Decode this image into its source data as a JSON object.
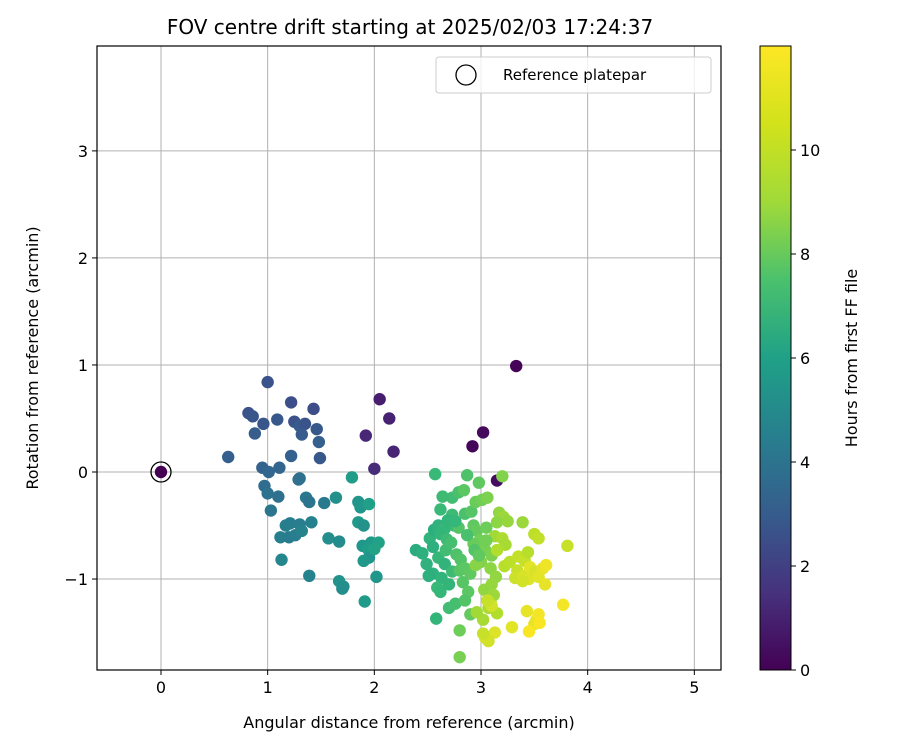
{
  "chart_data": {
    "type": "scatter",
    "title": "FOV centre drift starting at 2025/02/03 17:24:37",
    "xlabel": "Angular distance from reference (arcmin)",
    "ylabel": "Rotation from reference (arcmin)",
    "xlim": [
      -0.6,
      5.25
    ],
    "ylim": [
      -1.85,
      3.98
    ],
    "xticks": [
      0,
      1,
      2,
      3,
      4,
      5
    ],
    "yticks": [
      -1,
      0,
      1,
      2,
      3
    ],
    "ytick_labels": [
      "−1",
      "0",
      "1",
      "2",
      "3"
    ],
    "grid": true,
    "legend": {
      "location": "top-right",
      "entries": [
        "Reference platepar"
      ]
    },
    "reference_point": {
      "x": 0,
      "y": 0,
      "label": "Reference platepar"
    },
    "colorbar": {
      "label": "Hours from first FF file",
      "range": [
        0,
        12
      ],
      "ticks": [
        0,
        2,
        4,
        6,
        8,
        10
      ],
      "colormap": "viridis"
    },
    "series": [
      {
        "points": [
          [
            0,
            0,
            0.0
          ],
          [
            3.33,
            0.99,
            0.1
          ],
          [
            3.02,
            0.37,
            0.3
          ],
          [
            2.92,
            0.24,
            0.2
          ],
          [
            3.15,
            -0.08,
            0.4
          ],
          [
            2.05,
            0.68,
            1.0
          ],
          [
            2.14,
            0.5,
            1.1
          ],
          [
            1.92,
            0.34,
            1.3
          ],
          [
            2.18,
            0.19,
            1.2
          ],
          [
            2.0,
            0.03,
            1.5
          ],
          [
            1.0,
            0.84,
            3.1
          ],
          [
            1.43,
            0.59,
            2.8
          ],
          [
            1.22,
            0.65,
            2.9
          ],
          [
            0.82,
            0.55,
            3.0
          ],
          [
            0.86,
            0.52,
            3.2
          ],
          [
            1.09,
            0.49,
            3.3
          ],
          [
            1.25,
            0.47,
            3.0
          ],
          [
            1.3,
            0.43,
            3.4
          ],
          [
            1.35,
            0.45,
            3.1
          ],
          [
            0.96,
            0.45,
            3.2
          ],
          [
            1.46,
            0.4,
            3.3
          ],
          [
            0.88,
            0.36,
            3.5
          ],
          [
            1.32,
            0.35,
            3.4
          ],
          [
            1.48,
            0.28,
            3.6
          ],
          [
            1.49,
            0.13,
            3.3
          ],
          [
            1.22,
            0.15,
            3.7
          ],
          [
            0.63,
            0.14,
            3.6
          ],
          [
            0.95,
            0.04,
            3.8
          ],
          [
            1.11,
            0.04,
            3.9
          ],
          [
            1.01,
            0.0,
            3.9
          ],
          [
            1.29,
            -0.07,
            4.3
          ],
          [
            0.97,
            -0.13,
            4.2
          ],
          [
            1.3,
            -0.06,
            4.4
          ],
          [
            1.0,
            -0.2,
            4.5
          ],
          [
            1.1,
            -0.23,
            4.4
          ],
          [
            1.36,
            -0.24,
            4.8
          ],
          [
            1.39,
            -0.28,
            4.6
          ],
          [
            1.53,
            -0.29,
            4.9
          ],
          [
            1.03,
            -0.36,
            4.7
          ],
          [
            1.21,
            -0.48,
            5.0
          ],
          [
            1.3,
            -0.49,
            5.1
          ],
          [
            1.17,
            -0.5,
            5.2
          ],
          [
            1.41,
            -0.47,
            5.3
          ],
          [
            1.12,
            -0.61,
            5.2
          ],
          [
            1.2,
            -0.61,
            5.0
          ],
          [
            1.26,
            -0.59,
            5.1
          ],
          [
            1.32,
            -0.55,
            5.4
          ],
          [
            1.13,
            -0.82,
            5.5
          ],
          [
            1.39,
            -0.97,
            5.4
          ],
          [
            1.57,
            -0.62,
            5.9
          ],
          [
            1.67,
            -0.65,
            5.8
          ],
          [
            1.64,
            -0.24,
            6.0
          ],
          [
            1.67,
            -1.02,
            6.1
          ],
          [
            1.71,
            -1.07,
            6.0
          ],
          [
            1.7,
            -1.09,
            5.9
          ],
          [
            1.79,
            -0.05,
            6.6
          ],
          [
            1.85,
            -0.28,
            6.2
          ],
          [
            1.87,
            -0.33,
            6.3
          ],
          [
            1.85,
            -0.47,
            6.4
          ],
          [
            1.9,
            -0.5,
            6.1
          ],
          [
            1.95,
            -0.3,
            6.7
          ],
          [
            1.97,
            -0.66,
            6.5
          ],
          [
            1.89,
            -0.69,
            6.3
          ],
          [
            1.94,
            -0.72,
            6.6
          ],
          [
            1.95,
            -0.8,
            6.2
          ],
          [
            1.9,
            -0.83,
            6.4
          ],
          [
            2.02,
            -0.98,
            6.3
          ],
          [
            1.91,
            -1.21,
            6.5
          ],
          [
            2.04,
            -0.66,
            6.8
          ],
          [
            2.0,
            -0.72,
            6.9
          ],
          [
            2.39,
            -0.73,
            7.4
          ],
          [
            2.45,
            -0.76,
            7.6
          ],
          [
            2.52,
            -0.62,
            7.8
          ],
          [
            2.56,
            -0.54,
            7.5
          ],
          [
            2.6,
            -0.5,
            7.7
          ],
          [
            2.66,
            -0.53,
            8.0
          ],
          [
            2.7,
            -0.48,
            7.9
          ],
          [
            2.75,
            -0.5,
            8.1
          ],
          [
            2.62,
            -0.58,
            7.9
          ],
          [
            2.68,
            -0.63,
            8.2
          ],
          [
            2.55,
            -0.7,
            7.6
          ],
          [
            2.6,
            -0.8,
            8.0
          ],
          [
            2.66,
            -0.86,
            7.8
          ],
          [
            2.55,
            -0.95,
            7.7
          ],
          [
            2.63,
            -0.99,
            7.8
          ],
          [
            2.7,
            -1.05,
            7.9
          ],
          [
            2.59,
            -1.08,
            8.1
          ],
          [
            2.62,
            -1.12,
            8.0
          ],
          [
            2.7,
            -1.27,
            8.3
          ],
          [
            2.76,
            -1.23,
            8.4
          ],
          [
            2.58,
            -1.37,
            7.9
          ],
          [
            2.73,
            -0.93,
            8.2
          ],
          [
            2.67,
            -0.73,
            8.3
          ],
          [
            2.72,
            -0.66,
            8.4
          ],
          [
            2.77,
            -0.77,
            8.6
          ],
          [
            2.81,
            -0.82,
            8.7
          ],
          [
            2.8,
            -0.92,
            8.8
          ],
          [
            2.85,
            -0.9,
            8.9
          ],
          [
            2.9,
            -0.95,
            9.0
          ],
          [
            2.83,
            -1.03,
            8.8
          ],
          [
            2.88,
            -1.12,
            8.9
          ],
          [
            2.85,
            -1.2,
            8.7
          ],
          [
            2.9,
            -1.33,
            9.1
          ],
          [
            2.8,
            -1.48,
            9.3
          ],
          [
            2.8,
            -1.73,
            9.5
          ],
          [
            2.57,
            -0.02,
            8.1
          ],
          [
            2.73,
            -0.24,
            8.3
          ],
          [
            2.79,
            -0.19,
            8.5
          ],
          [
            2.84,
            -0.17,
            8.9
          ],
          [
            2.73,
            -0.4,
            8.2
          ],
          [
            2.85,
            -0.39,
            8.5
          ],
          [
            2.91,
            -0.37,
            8.8
          ],
          [
            2.95,
            -0.28,
            9.2
          ],
          [
            3.01,
            -0.26,
            9.4
          ],
          [
            3.06,
            -0.24,
            9.6
          ],
          [
            3.2,
            -0.04,
            9.7
          ],
          [
            2.79,
            -0.52,
            8.7
          ],
          [
            2.93,
            -0.5,
            9.0
          ],
          [
            2.96,
            -0.55,
            9.1
          ],
          [
            3.05,
            -0.52,
            9.3
          ],
          [
            2.99,
            -0.64,
            9.4
          ],
          [
            2.93,
            -0.67,
            9.2
          ],
          [
            3.04,
            -0.73,
            9.5
          ],
          [
            3.1,
            -0.78,
            9.6
          ],
          [
            3.0,
            -0.84,
            9.7
          ],
          [
            2.95,
            -0.87,
            9.8
          ],
          [
            3.09,
            -0.9,
            9.9
          ],
          [
            3.14,
            -0.98,
            10.0
          ],
          [
            3.1,
            -1.05,
            10.1
          ],
          [
            3.03,
            -1.1,
            10.0
          ],
          [
            3.12,
            -1.15,
            10.2
          ],
          [
            3.09,
            -1.22,
            10.4
          ],
          [
            3.07,
            -1.27,
            10.5
          ],
          [
            3.15,
            -1.32,
            10.6
          ],
          [
            3.02,
            -1.38,
            10.4
          ],
          [
            2.96,
            -1.31,
            10.3
          ],
          [
            3.17,
            -0.38,
            10.0
          ],
          [
            3.21,
            -0.42,
            10.2
          ],
          [
            3.15,
            -0.47,
            9.9
          ],
          [
            3.25,
            -0.46,
            10.1
          ],
          [
            3.13,
            -0.6,
            10.3
          ],
          [
            3.2,
            -0.62,
            10.5
          ],
          [
            3.23,
            -0.68,
            10.4
          ],
          [
            3.15,
            -0.73,
            10.6
          ],
          [
            3.22,
            -0.88,
            10.7
          ],
          [
            3.27,
            -0.84,
            10.8
          ],
          [
            3.35,
            -0.79,
            10.9
          ],
          [
            3.41,
            -0.83,
            11.0
          ],
          [
            3.44,
            -0.75,
            10.7
          ],
          [
            3.39,
            -0.47,
            10.2
          ],
          [
            3.34,
            -0.92,
            11.0
          ],
          [
            3.32,
            -0.99,
            11.1
          ],
          [
            3.4,
            -0.97,
            11.3
          ],
          [
            3.45,
            -1.0,
            11.4
          ],
          [
            3.39,
            -1.02,
            11.2
          ],
          [
            3.46,
            -0.89,
            11.5
          ],
          [
            3.51,
            -0.93,
            11.3
          ],
          [
            3.54,
            -0.98,
            11.5
          ],
          [
            3.58,
            -0.9,
            11.6
          ],
          [
            3.61,
            -0.87,
            11.7
          ],
          [
            3.6,
            -1.05,
            11.6
          ],
          [
            3.5,
            -0.58,
            10.8
          ],
          [
            3.54,
            -0.62,
            10.9
          ],
          [
            3.81,
            -0.69,
            11.0
          ],
          [
            3.77,
            -1.24,
            11.8
          ],
          [
            3.43,
            -1.3,
            11.6
          ],
          [
            3.52,
            -1.38,
            11.7
          ],
          [
            3.54,
            -1.33,
            11.8
          ],
          [
            3.5,
            -1.42,
            11.6
          ],
          [
            3.55,
            -1.41,
            11.9
          ],
          [
            3.29,
            -1.45,
            11.5
          ],
          [
            3.45,
            -1.49,
            11.9
          ],
          [
            3.13,
            -1.5,
            11.4
          ],
          [
            3.04,
            -1.55,
            11.3
          ],
          [
            3.07,
            -1.58,
            11.2
          ],
          [
            3.02,
            -1.51,
            11.0
          ],
          [
            3.1,
            -1.25,
            11.2
          ],
          [
            3.06,
            -1.2,
            11.0
          ],
          [
            2.94,
            -0.73,
            8.7
          ],
          [
            2.98,
            -0.78,
            9.0
          ],
          [
            2.87,
            -0.59,
            8.5
          ],
          [
            2.69,
            -0.45,
            7.9
          ],
          [
            2.76,
            -0.46,
            8.0
          ],
          [
            2.51,
            -0.97,
            7.6
          ],
          [
            2.49,
            -0.86,
            7.7
          ],
          [
            2.87,
            -0.03,
            8.6
          ],
          [
            2.98,
            -0.1,
            9.0
          ],
          [
            2.64,
            -0.23,
            8.2
          ],
          [
            2.62,
            -0.35,
            8.1
          ],
          [
            3.05,
            -0.64,
            9.4
          ]
        ]
      }
    ]
  }
}
